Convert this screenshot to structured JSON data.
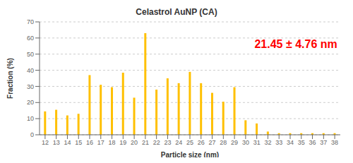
{
  "chart_data": {
    "type": "bar",
    "title": "Celastrol AuNP (CA)",
    "xlabel": "Particle size (nm)",
    "ylabel": "Fraction (%)",
    "annotation": {
      "text": "21.45 ± 4.76 nm",
      "color": "#ff0000"
    },
    "categories": [
      12,
      13,
      14,
      15,
      16,
      17,
      18,
      19,
      20,
      21,
      22,
      23,
      24,
      25,
      26,
      27,
      28,
      29,
      30,
      31,
      32,
      33,
      34,
      35,
      36,
      37,
      38
    ],
    "values": [
      14.5,
      15.5,
      12,
      13,
      37,
      31,
      29.5,
      38.5,
      23,
      63,
      28,
      35,
      32,
      39,
      32,
      26,
      20.5,
      29.5,
      9,
      7,
      2,
      1,
      1,
      1,
      1,
      1,
      1
    ],
    "color": "#FFC000",
    "ylim": [
      0,
      70
    ],
    "yticks": [
      0,
      10,
      20,
      30,
      40,
      50,
      60,
      70
    ],
    "grid": true
  }
}
